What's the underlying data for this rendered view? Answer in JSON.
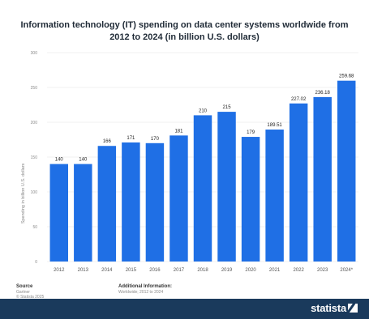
{
  "chart_data": {
    "type": "bar",
    "title": "Information technology (IT) spending on data center systems worldwide from 2012 to 2024 (in billion U.S. dollars)",
    "ylabel": "Spending in billion U.S. dollars",
    "xlabel": "",
    "categories": [
      "2012",
      "2013",
      "2014",
      "2015",
      "2016",
      "2017",
      "2018",
      "2019",
      "2020",
      "2021",
      "2022",
      "2023",
      "2024*"
    ],
    "values": [
      140,
      140,
      166,
      171,
      170,
      181,
      210,
      215,
      179,
      189.51,
      227.02,
      236.18,
      259.68
    ],
    "value_labels": [
      "140",
      "140",
      "166",
      "171",
      "170",
      "181",
      "210",
      "215",
      "179",
      "189.51",
      "227.02",
      "236.18",
      "259.68"
    ],
    "ylim": [
      0,
      300
    ],
    "yticks": [
      0,
      50,
      100,
      150,
      200,
      250,
      300
    ],
    "grid": true,
    "bar_color": "#1f6fe5"
  },
  "footer": {
    "source_label": "Source",
    "source_lines": [
      "Gartner",
      "© Statista 2025"
    ],
    "info_label": "Additional Information:",
    "info_text": "Worldwide; 2012 to 2024"
  },
  "brand": {
    "logo_text": "statista",
    "bar_color": "#1a3a5c"
  }
}
